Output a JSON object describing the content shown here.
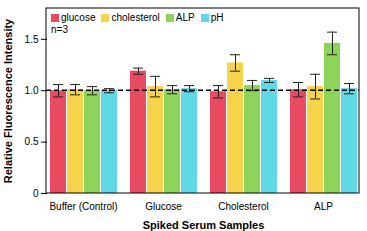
{
  "chart_data": {
    "type": "bar",
    "categories": [
      "Buffer (Control)",
      "Glucose",
      "Cholesterol",
      "ALP"
    ],
    "series": [
      {
        "name": "glucose",
        "color": "#e84a5f",
        "values": [
          1.0,
          1.19,
          0.99,
          1.01
        ],
        "errors": [
          0.06,
          0.03,
          0.06,
          0.07
        ]
      },
      {
        "name": "cholesterol",
        "color": "#f5d34a",
        "values": [
          1.01,
          1.04,
          1.27,
          1.04
        ],
        "errors": [
          0.05,
          0.1,
          0.08,
          0.12
        ]
      },
      {
        "name": "ALP",
        "color": "#8ed45a",
        "values": [
          1.0,
          1.01,
          1.05,
          1.46
        ],
        "errors": [
          0.04,
          0.04,
          0.05,
          0.11
        ]
      },
      {
        "name": "pH",
        "color": "#5fd8e8",
        "values": [
          1.0,
          1.02,
          1.1,
          1.02
        ],
        "errors": [
          0.02,
          0.03,
          0.02,
          0.05
        ]
      }
    ],
    "x_label": "Spiked Serum Samples",
    "y_label": "Relative Fluorescence Intensity",
    "ylim": [
      0,
      1.8
    ],
    "yticks": [
      0,
      0.5,
      {
        "value": 1,
        "label": "1.0"
      },
      1.5
    ],
    "reference_line": 1,
    "annotations": [
      "n=3"
    ],
    "legend": "top-left",
    "grid": false
  }
}
